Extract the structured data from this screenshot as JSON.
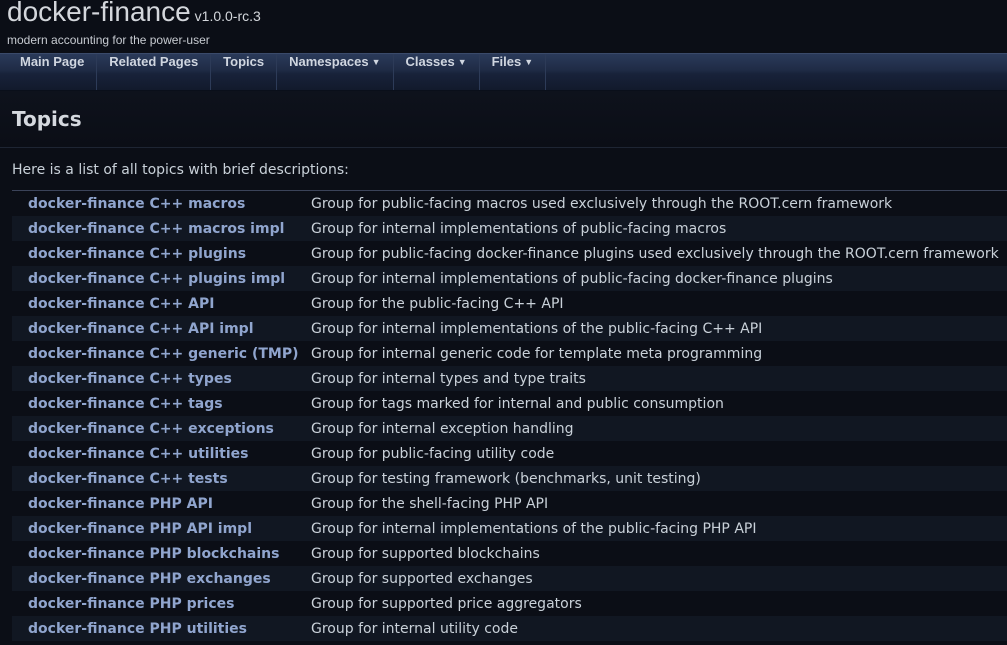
{
  "project": {
    "name": "docker-finance",
    "version": "v1.0.0-rc.3",
    "brief": "modern accounting for the power-user"
  },
  "nav": [
    {
      "label": "Main Page",
      "dropdown": false
    },
    {
      "label": "Related Pages",
      "dropdown": false
    },
    {
      "label": "Topics",
      "dropdown": false
    },
    {
      "label": "Namespaces",
      "dropdown": true
    },
    {
      "label": "Classes",
      "dropdown": true
    },
    {
      "label": "Files",
      "dropdown": true
    }
  ],
  "page": {
    "title": "Topics",
    "intro": "Here is a list of all topics with brief descriptions:"
  },
  "topics": [
    {
      "name": "docker-finance C++ macros",
      "desc": "Group for public-facing macros used exclusively through the ROOT.cern framework"
    },
    {
      "name": "docker-finance C++ macros impl",
      "desc": "Group for internal implementations of public-facing macros"
    },
    {
      "name": "docker-finance C++ plugins",
      "desc": "Group for public-facing docker-finance plugins used exclusively through the ROOT.cern framework"
    },
    {
      "name": "docker-finance C++ plugins impl",
      "desc": "Group for internal implementations of public-facing docker-finance plugins"
    },
    {
      "name": "docker-finance C++ API",
      "desc": "Group for the public-facing C++ API"
    },
    {
      "name": "docker-finance C++ API impl",
      "desc": "Group for internal implementations of the public-facing C++ API"
    },
    {
      "name": "docker-finance C++ generic (TMP)",
      "desc": "Group for internal generic code for template meta programming"
    },
    {
      "name": "docker-finance C++ types",
      "desc": "Group for internal types and type traits"
    },
    {
      "name": "docker-finance C++ tags",
      "desc": "Group for tags marked for internal and public consumption"
    },
    {
      "name": "docker-finance C++ exceptions",
      "desc": "Group for internal exception handling"
    },
    {
      "name": "docker-finance C++ utilities",
      "desc": "Group for public-facing utility code"
    },
    {
      "name": "docker-finance C++ tests",
      "desc": "Group for testing framework (benchmarks, unit testing)"
    },
    {
      "name": "docker-finance PHP API",
      "desc": "Group for the shell-facing PHP API"
    },
    {
      "name": "docker-finance PHP API impl",
      "desc": "Group for internal implementations of the public-facing PHP API"
    },
    {
      "name": "docker-finance PHP blockchains",
      "desc": "Group for supported blockchains"
    },
    {
      "name": "docker-finance PHP exchanges",
      "desc": "Group for supported exchanges"
    },
    {
      "name": "docker-finance PHP prices",
      "desc": "Group for supported price aggregators"
    },
    {
      "name": "docker-finance PHP utilities",
      "desc": "Group for internal utility code"
    }
  ]
}
